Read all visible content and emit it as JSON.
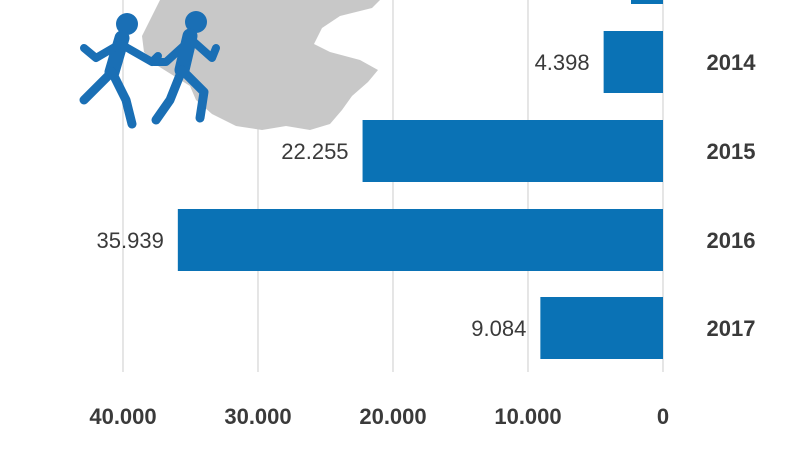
{
  "chart_data": {
    "type": "bar",
    "orientation": "horizontal",
    "value_axis_direction": "right-to-left",
    "categories": [
      "2014",
      "2015",
      "2016",
      "2017"
    ],
    "values": [
      4398,
      22255,
      35939,
      9084
    ],
    "value_labels": [
      "4.398",
      "22.255",
      "35.939",
      "9.084"
    ],
    "partial_bar_at_top": true,
    "xlim": [
      0,
      40000
    ],
    "x_ticks": [
      40000,
      30000,
      20000,
      10000,
      0
    ],
    "x_tick_labels": [
      "40.000",
      "30.000",
      "20.000",
      "10.000",
      "0"
    ],
    "grid": "vertical",
    "title": "",
    "xlabel": "",
    "ylabel": ""
  },
  "colors": {
    "bar": "#0a72b5",
    "map": "#c8c8c8",
    "icon": "#1a6fb5",
    "grid": "#d4d4d4",
    "text": "#3a3a3a"
  },
  "decoration": {
    "map_icon": "map-silhouette",
    "people_icon": "running-children-icon"
  }
}
